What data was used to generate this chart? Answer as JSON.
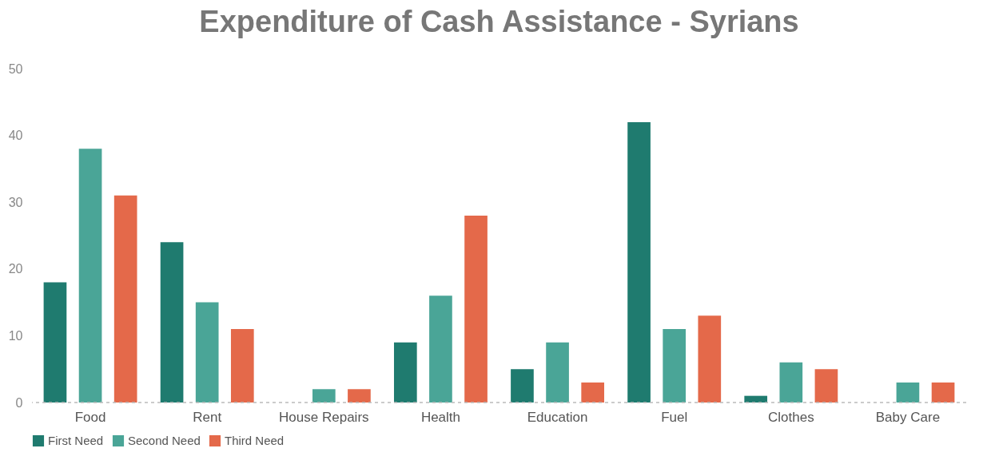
{
  "chart_data": {
    "type": "bar",
    "title": "Expenditure of Cash Assistance - Syrians",
    "categories": [
      "Food",
      "Rent",
      "House Repairs",
      "Health",
      "Education",
      "Fuel",
      "Clothes",
      "Baby Care"
    ],
    "series": [
      {
        "name": "First Need",
        "color": "#1f7b6f",
        "values": [
          18,
          24,
          0,
          9,
          5,
          42,
          1,
          0
        ]
      },
      {
        "name": "Second Need",
        "color": "#4aa597",
        "values": [
          38,
          15,
          2,
          16,
          9,
          11,
          6,
          3
        ]
      },
      {
        "name": "Third Need",
        "color": "#e4694a",
        "values": [
          31,
          11,
          2,
          28,
          3,
          13,
          5,
          3
        ]
      }
    ],
    "ylim": [
      0,
      50
    ],
    "yticks": [
      0,
      10,
      20,
      30,
      40,
      50
    ],
    "grid": false,
    "legend": "bottom"
  }
}
